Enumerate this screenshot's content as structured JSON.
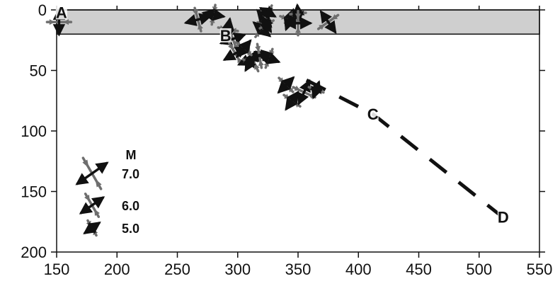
{
  "chart_data": {
    "type": "scatter",
    "xlim": [
      150,
      550
    ],
    "ylim": [
      0,
      200
    ],
    "y_inverted": true,
    "x_ticks": [
      150,
      200,
      250,
      300,
      350,
      400,
      450,
      500,
      550
    ],
    "y_ticks": [
      0,
      50,
      100,
      150,
      200
    ],
    "grid": false,
    "shaded_band": {
      "y_from": -5,
      "y_to": 20,
      "color": "#cfcfcf"
    },
    "profile_line": {
      "style": "dashed",
      "points": [
        [
          357,
          58
        ],
        [
          412,
          86
        ],
        [
          518,
          170
        ]
      ]
    },
    "point_labels": [
      {
        "label": "A",
        "x": 154,
        "y": 2
      },
      {
        "label": "B",
        "x": 290,
        "y": 21
      },
      {
        "label": "C",
        "x": 412,
        "y": 86
      },
      {
        "label": "D",
        "x": 520,
        "y": 171
      }
    ],
    "legend": {
      "title": "M",
      "position": "bottom-left",
      "entries": [
        {
          "label": "7.0",
          "magnitude": 7.0
        },
        {
          "label": "6.0",
          "magnitude": 6.0
        },
        {
          "label": "5.0",
          "magnitude": 5.0
        }
      ]
    },
    "colors": {
      "t_axis": "#111111",
      "p_axis": "#6e6e6e"
    },
    "events": [
      {
        "x": 152,
        "y": 10,
        "m": 6.0,
        "t_az": 0,
        "p_az": 90
      },
      {
        "x": 267,
        "y": 8,
        "m": 6.0,
        "t_az": 75,
        "p_az": 165
      },
      {
        "x": 280,
        "y": 4,
        "m": 5.5,
        "t_az": 100,
        "p_az": 10
      },
      {
        "x": 296,
        "y": 24,
        "m": 6.0,
        "t_az": 70,
        "p_az": 160
      },
      {
        "x": 292,
        "y": 16,
        "m": 5.5,
        "t_az": 10,
        "p_az": 100
      },
      {
        "x": 322,
        "y": 7,
        "m": 5.5,
        "t_az": 140,
        "p_az": 50
      },
      {
        "x": 325,
        "y": 2,
        "m": 5.0,
        "t_az": 120,
        "p_az": 30
      },
      {
        "x": 320,
        "y": 16,
        "m": 5.5,
        "t_az": 130,
        "p_az": 40
      },
      {
        "x": 324,
        "y": 12,
        "m": 5.0,
        "t_az": 150,
        "p_az": 60
      },
      {
        "x": 343,
        "y": 8,
        "m": 5.5,
        "t_az": 20,
        "p_az": 110
      },
      {
        "x": 350,
        "y": 3,
        "m": 5.0,
        "t_az": 175,
        "p_az": 85
      },
      {
        "x": 350,
        "y": 11,
        "m": 6.0,
        "t_az": 90,
        "p_az": 0
      },
      {
        "x": 375,
        "y": 10,
        "m": 6.0,
        "t_az": 145,
        "p_az": 55
      },
      {
        "x": 298,
        "y": 36,
        "m": 6.0,
        "t_az": 60,
        "p_az": 150
      },
      {
        "x": 312,
        "y": 40,
        "m": 6.5,
        "t_az": 65,
        "p_az": 155
      },
      {
        "x": 318,
        "y": 38,
        "m": 6.0,
        "t_az": 80,
        "p_az": 170
      },
      {
        "x": 305,
        "y": 32,
        "m": 5.5,
        "t_az": 40,
        "p_az": 130
      },
      {
        "x": 326,
        "y": 40,
        "m": 5.5,
        "t_az": 110,
        "p_az": 20
      },
      {
        "x": 310,
        "y": 44,
        "m": 5.0,
        "t_az": 30,
        "p_az": 120
      },
      {
        "x": 340,
        "y": 62,
        "m": 5.5,
        "t_az": 45,
        "p_az": 135
      },
      {
        "x": 345,
        "y": 75,
        "m": 5.5,
        "t_az": 35,
        "p_az": 125
      },
      {
        "x": 355,
        "y": 68,
        "m": 6.0,
        "t_az": 25,
        "p_az": 115
      },
      {
        "x": 365,
        "y": 66,
        "m": 5.0,
        "t_az": 20,
        "p_az": 110
      }
    ]
  }
}
